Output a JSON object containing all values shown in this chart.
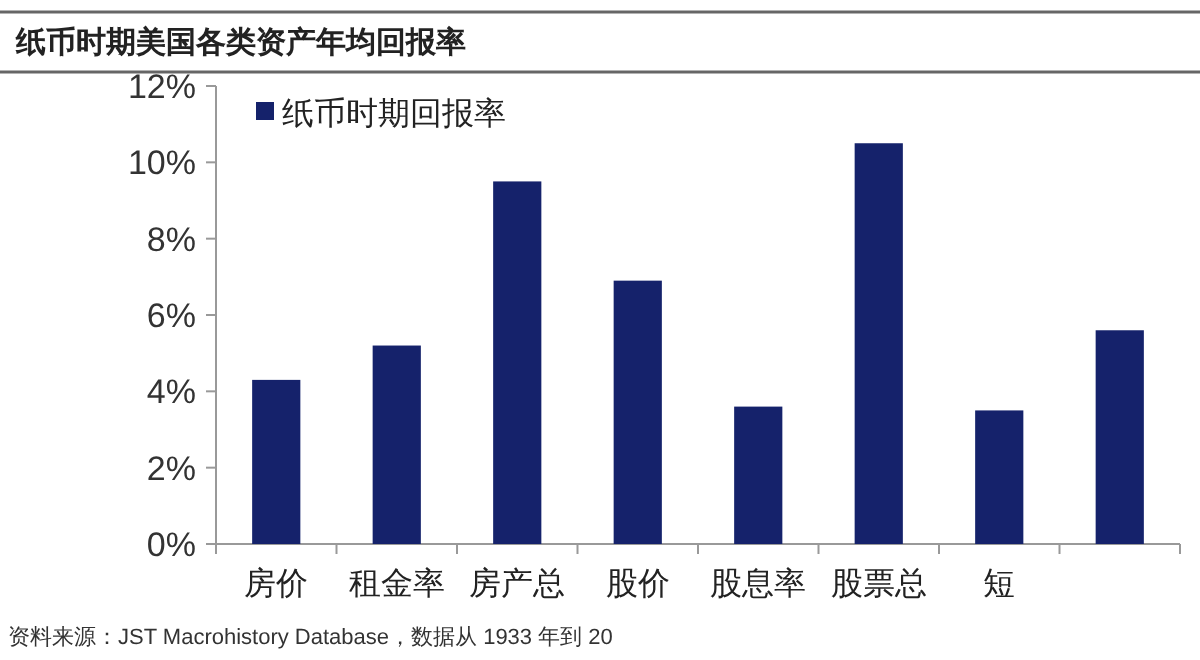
{
  "chart_data": {
    "type": "bar",
    "title": "纸币时期美国各类资产年均回报率",
    "categories": [
      "房价",
      "租金率",
      "房产总",
      "股价",
      "股息率",
      "股票总",
      "短",
      null
    ],
    "series": [
      {
        "name": "纸币时期回报率",
        "color": "#15226b",
        "values": [
          4.3,
          5.2,
          9.5,
          6.9,
          3.6,
          10.5,
          3.5,
          5.6
        ]
      }
    ],
    "ylim": [
      0,
      12
    ],
    "yticks": [
      {
        "value": 0,
        "label": "0%"
      },
      {
        "value": 2,
        "label": "2%"
      },
      {
        "value": 4,
        "label": "4%"
      },
      {
        "value": 6,
        "label": "6%"
      },
      {
        "value": 8,
        "label": "8%"
      },
      {
        "value": 10,
        "label": "10%"
      },
      {
        "value": 12,
        "label": "12%"
      }
    ],
    "grid": false,
    "legend": "top left",
    "annotations": [
      "资料来源：JST Macrohistory Database，数据从 1933 年到 20"
    ]
  }
}
